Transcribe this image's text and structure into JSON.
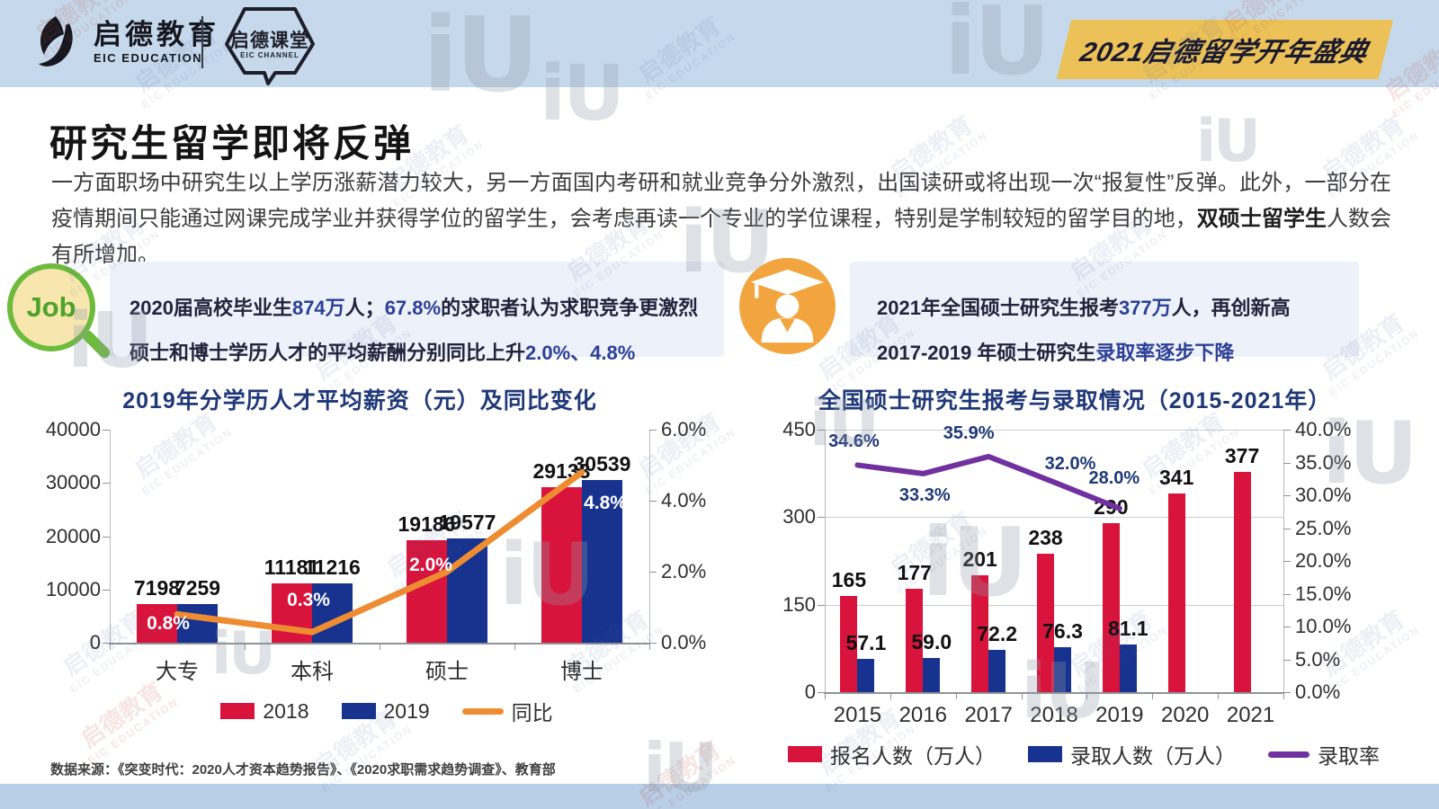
{
  "header": {
    "logo": {
      "cn": "启德教育",
      "en": "EIC EDUCATION",
      "mark_icon": "eic-leaf-mark-icon"
    },
    "channel": {
      "cn": "启德课堂",
      "en": "EIC CHANNEL",
      "icon": "hexagon-speech-bubble-icon"
    },
    "banner": "2021启德留学开年盛典"
  },
  "page": {
    "title": "研究生留学即将反弹",
    "intro": [
      {
        "t": "一方面职场中研究生以上学历涨薪潜力较大，另一方面国内考研和就业竞争分外激烈，出国读研或将出现一次“报复性”反弹。此外，一部分在疫情期间只能通过网课完成学业并获得学位的留学生，会考虑再读一个专业的学位课程，特别是学制较短的留学目的地，"
      },
      {
        "t": "双硕士留学生",
        "s": "b"
      },
      {
        "t": "人数会有所增加。"
      }
    ],
    "source": "数据来源：《突变时代：2020人才资本趋势报告》、《2020求职需求趋势调查》、教育部"
  },
  "callouts": {
    "job": {
      "icon": "job-magnifier-icon",
      "icon_label": "Job",
      "line1": [
        {
          "t": "2020届高校毕业生"
        },
        {
          "t": "874万",
          "s": "hl"
        },
        {
          "t": "人；"
        },
        {
          "t": "67.8%",
          "s": "hl"
        },
        {
          "t": "的求职者认为求职竞争更激烈"
        }
      ],
      "line2": [
        {
          "t": "硕士和博士学历人才的平均薪酬分别同比上升"
        },
        {
          "t": "2.0%、4.8%",
          "s": "hl"
        }
      ]
    },
    "admission": {
      "icon": "graduate-cap-person-icon",
      "line1": [
        {
          "t": "2021年全国硕士研究生报考"
        },
        {
          "t": "377万",
          "s": "hl"
        },
        {
          "t": "人，再创新高"
        }
      ],
      "line2": [
        {
          "t": "2017-2019 年硕士研究生"
        },
        {
          "t": "录取率逐步下降",
          "s": "hl"
        }
      ]
    }
  },
  "chart_data": [
    {
      "type": "bar+line",
      "title": "2019年分学历人才平均薪资（元）及同比变化",
      "categories": [
        "大专",
        "本科",
        "硕士",
        "博士"
      ],
      "series": [
        {
          "name": "2018",
          "type": "bar",
          "color": "#d8143c",
          "values": [
            7198,
            11181,
            19186,
            29133
          ],
          "labels": [
            "7198",
            "11181",
            "19186",
            "29133"
          ]
        },
        {
          "name": "2019",
          "type": "bar",
          "color": "#17338f",
          "values": [
            7259,
            11216,
            19577,
            30539
          ],
          "labels": [
            "7259",
            "11216",
            "19577",
            "30539"
          ]
        },
        {
          "name": "同比",
          "type": "line",
          "color": "#ee8c31",
          "axis": "right",
          "values": [
            0.8,
            0.3,
            2.0,
            4.8
          ],
          "labels": [
            "0.8%",
            "0.3%",
            "2.0%",
            "4.8%"
          ]
        }
      ],
      "left_axis": {
        "max": 40000,
        "ticks": [
          0,
          10000,
          20000,
          30000,
          40000
        ],
        "tick_labels": [
          "0",
          "10000",
          "20000",
          "30000",
          "40000"
        ]
      },
      "right_axis": {
        "max": 6,
        "ticks": [
          0,
          2,
          4,
          6
        ],
        "tick_labels": [
          "0.0%",
          "2.0%",
          "4.0%",
          "6.0%"
        ]
      },
      "grid": false,
      "legend": [
        {
          "label": "2018",
          "color": "#d8143c",
          "type": "bar"
        },
        {
          "label": "2019",
          "color": "#17338f",
          "type": "bar"
        },
        {
          "label": "同比",
          "color": "#ee8c31",
          "type": "line"
        }
      ],
      "legend_position": "bottom"
    },
    {
      "type": "bar+line",
      "title": "全国硕士研究生报考与录取情况（2015-2021年）",
      "categories": [
        "2015",
        "2016",
        "2017",
        "2018",
        "2019",
        "2020",
        "2021"
      ],
      "series": [
        {
          "name": "报名人数（万人）",
          "type": "bar",
          "color": "#d8143c",
          "values": [
            165,
            177,
            201,
            238,
            290,
            341,
            377
          ],
          "labels": [
            "165",
            "177",
            "201",
            "238",
            "290",
            "341",
            "377"
          ]
        },
        {
          "name": "录取人数（万人）",
          "type": "bar",
          "color": "#17338f",
          "values": [
            57.1,
            59.0,
            72.2,
            76.3,
            81.1,
            null,
            null
          ],
          "labels": [
            "57.1",
            "59.0",
            "72.2",
            "76.3",
            "81.1",
            null,
            null
          ]
        },
        {
          "name": "录取率",
          "type": "line",
          "color": "#7030a0",
          "axis": "right",
          "values": [
            34.6,
            33.3,
            35.9,
            32.0,
            28.0,
            null,
            null
          ],
          "labels": [
            "34.6%",
            "33.3%",
            "35.9%",
            "32.0%",
            "28.0%",
            null,
            null
          ]
        }
      ],
      "left_axis": {
        "max": 450,
        "ticks": [
          0,
          150,
          300,
          450
        ],
        "tick_labels": [
          "0",
          "150",
          "300",
          "450"
        ]
      },
      "right_axis": {
        "max": 40,
        "ticks": [
          0,
          5,
          10,
          15,
          20,
          25,
          30,
          35,
          40
        ],
        "tick_labels": [
          "0.0%",
          "5.0%",
          "10.0%",
          "15.0%",
          "20.0%",
          "25.0%",
          "30.0%",
          "35.0%",
          "40.0%"
        ]
      },
      "grid": true,
      "legend": [
        {
          "label": "报名人数（万人）",
          "color": "#d8143c",
          "type": "bar"
        },
        {
          "label": "录取人数（万人）",
          "color": "#17338f",
          "type": "bar"
        },
        {
          "label": "录取率",
          "color": "#7030a0",
          "type": "line"
        }
      ],
      "legend_position": "bottom"
    }
  ],
  "watermark": {
    "cn": "启德教育",
    "en": "EIC EDUCATION",
    "logo": "iU"
  },
  "colors": {
    "header_blue": "#c6d8ec",
    "footer_blue": "#b9cfe8",
    "banner_gold": "#ecc258",
    "bar_red": "#d8143c",
    "bar_navy": "#17338f",
    "line_orange": "#ee8c31",
    "line_purple": "#7030a0",
    "chart_title_navy": "#1f3878",
    "highlight_blue": "#2b3f96",
    "job_green": "#6cbb3c",
    "grad_orange": "#f2a53e",
    "callout_bg": "#edf1f9"
  }
}
